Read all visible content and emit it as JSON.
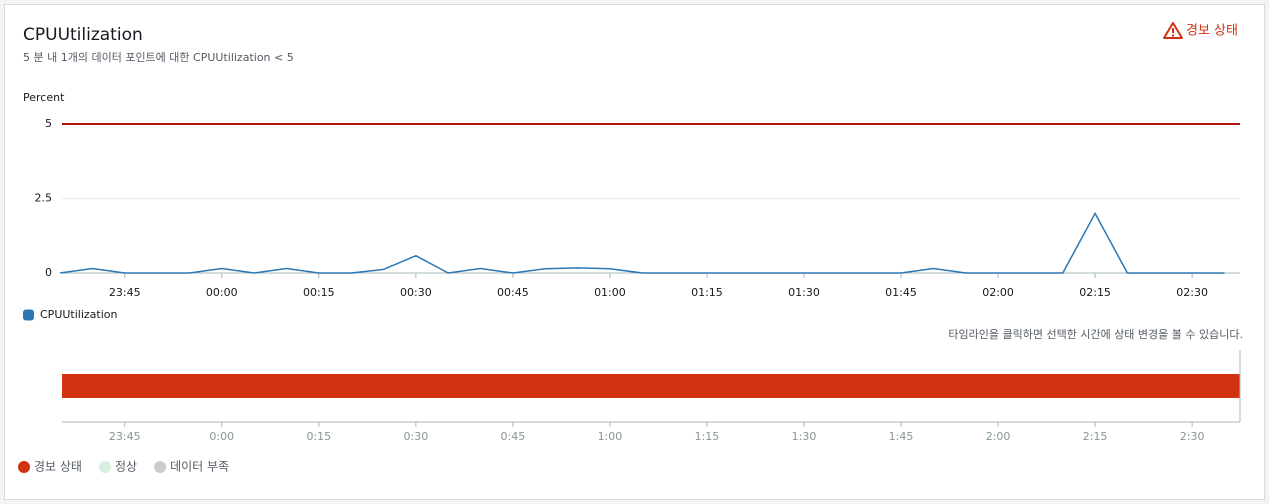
{
  "header": {
    "title": "CPUUtilization",
    "subtitle": "5 분 내 1개의 데이터 포인트에 대한 CPUUtilization < 5",
    "status": "경보 상태"
  },
  "chart_data": [
    {
      "type": "line",
      "ylabel": "Percent",
      "x": [
        -25,
        -20,
        -15,
        -10,
        -5,
        0,
        5,
        10,
        15,
        20,
        25,
        30,
        35,
        40,
        45,
        50,
        55,
        60,
        65,
        70,
        75,
        80,
        85,
        90,
        95,
        100,
        105,
        110,
        115,
        120,
        125,
        130,
        135,
        140,
        145,
        150,
        155
      ],
      "series": [
        {
          "name": "CPUUtilization",
          "color": "#2a77b4",
          "values": [
            0,
            0.15,
            0,
            0,
            0,
            0.15,
            0,
            0.15,
            0,
            0,
            0.12,
            0.58,
            0,
            0.15,
            0,
            0.14,
            0.17,
            0.14,
            0,
            0,
            0,
            0,
            0,
            0,
            0,
            0,
            0,
            0.15,
            0,
            0,
            0,
            0,
            2,
            0,
            0,
            0,
            0
          ]
        }
      ],
      "threshold": {
        "value": 5,
        "color": "#b0140e"
      },
      "xlim": [
        -24.7,
        157.4
      ],
      "xticks": [
        {
          "value": -15,
          "label": "23:45"
        },
        {
          "value": 0,
          "label": "00:00"
        },
        {
          "value": 15,
          "label": "00:15"
        },
        {
          "value": 30,
          "label": "00:30"
        },
        {
          "value": 45,
          "label": "00:45"
        },
        {
          "value": 60,
          "label": "01:00"
        },
        {
          "value": 75,
          "label": "01:15"
        },
        {
          "value": 90,
          "label": "01:30"
        },
        {
          "value": 105,
          "label": "01:45"
        },
        {
          "value": 120,
          "label": "02:00"
        },
        {
          "value": 135,
          "label": "02:15"
        },
        {
          "value": 150,
          "label": "02:30"
        }
      ],
      "ylim": [
        0,
        5
      ],
      "yticks": [
        0,
        2.5,
        5
      ],
      "grid": true,
      "legend": "bottom-left"
    },
    {
      "type": "timeline",
      "note": "타임라인을 클릭하면 선택한 시간에 상태 변경을 볼 수 있습니다.",
      "xlim": [
        -24.7,
        157.4
      ],
      "xticks": [
        {
          "value": -15,
          "label": "23:45"
        },
        {
          "value": 0,
          "label": "0:00"
        },
        {
          "value": 15,
          "label": "0:15"
        },
        {
          "value": 30,
          "label": "0:30"
        },
        {
          "value": 45,
          "label": "0:45"
        },
        {
          "value": 60,
          "label": "1:00"
        },
        {
          "value": 75,
          "label": "1:15"
        },
        {
          "value": 90,
          "label": "1:30"
        },
        {
          "value": 105,
          "label": "1:45"
        },
        {
          "value": 120,
          "label": "2:00"
        },
        {
          "value": 135,
          "label": "2:15"
        },
        {
          "value": 150,
          "label": "2:30"
        }
      ],
      "states": [
        {
          "name": "경보 상태",
          "color": "#d13212"
        },
        {
          "name": "정상",
          "color": "#d5f0dd"
        },
        {
          "name": "데이터 부족",
          "color": "#cccccc"
        }
      ]
    }
  ]
}
